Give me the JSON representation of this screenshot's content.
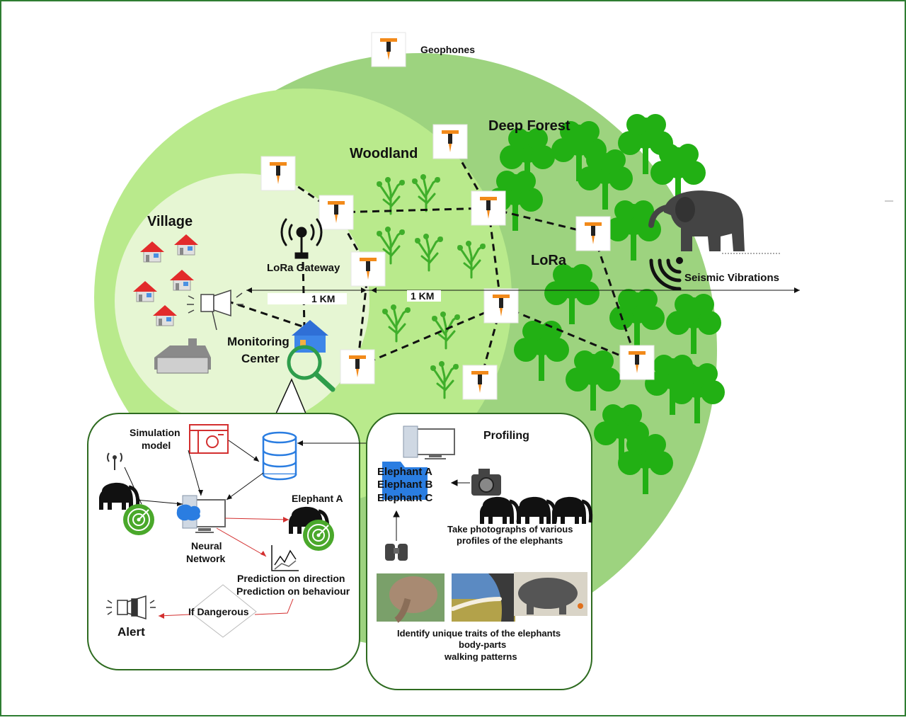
{
  "colors": {
    "outer_circle": "#9dd37f",
    "woodland_circle": "#b9ea8c",
    "village_circle": "#e6f6d3",
    "tree": "#22b014",
    "shrub": "#3fae2a",
    "panel_border": "#2e6b20",
    "sensor_orange": "#f28a1a",
    "red_arrow": "#d32f2f",
    "house_roof": "#e22b2b",
    "radar": "#4aa82b"
  },
  "legend": {
    "geophones_label": "Geophones"
  },
  "zones": {
    "deep_forest": "Deep Forest",
    "woodland": "Woodland",
    "village": "Village"
  },
  "network": {
    "gateway": "LoRa Gateway",
    "lora": "LoRa",
    "seismic": "Seismic Vibrations",
    "distance_1": "1  KM",
    "distance_2": "1  KM",
    "monitoring_line1": "Monitoring",
    "monitoring_line2": "Center"
  },
  "left_panel": {
    "simulation_line1": "Simulation",
    "simulation_line2": "model",
    "neural_line1": "Neural",
    "neural_line2": "Network",
    "elephant_a": "Elephant A",
    "prediction_direction": "Prediction on direction",
    "prediction_behaviour": "Prediction on behaviour",
    "if_dangerous": "If Dangerous",
    "alert": "Alert"
  },
  "right_panel": {
    "title": "Profiling",
    "elephants": [
      "Elephant A",
      "Elephant B",
      "Elephant C"
    ],
    "photo_line1": "Take photographs of various",
    "photo_line2": "profiles of the elephants",
    "traits_line1": "Identify unique traits of the elephants",
    "traits_line2": "body-parts",
    "traits_line3": "walking patterns"
  }
}
